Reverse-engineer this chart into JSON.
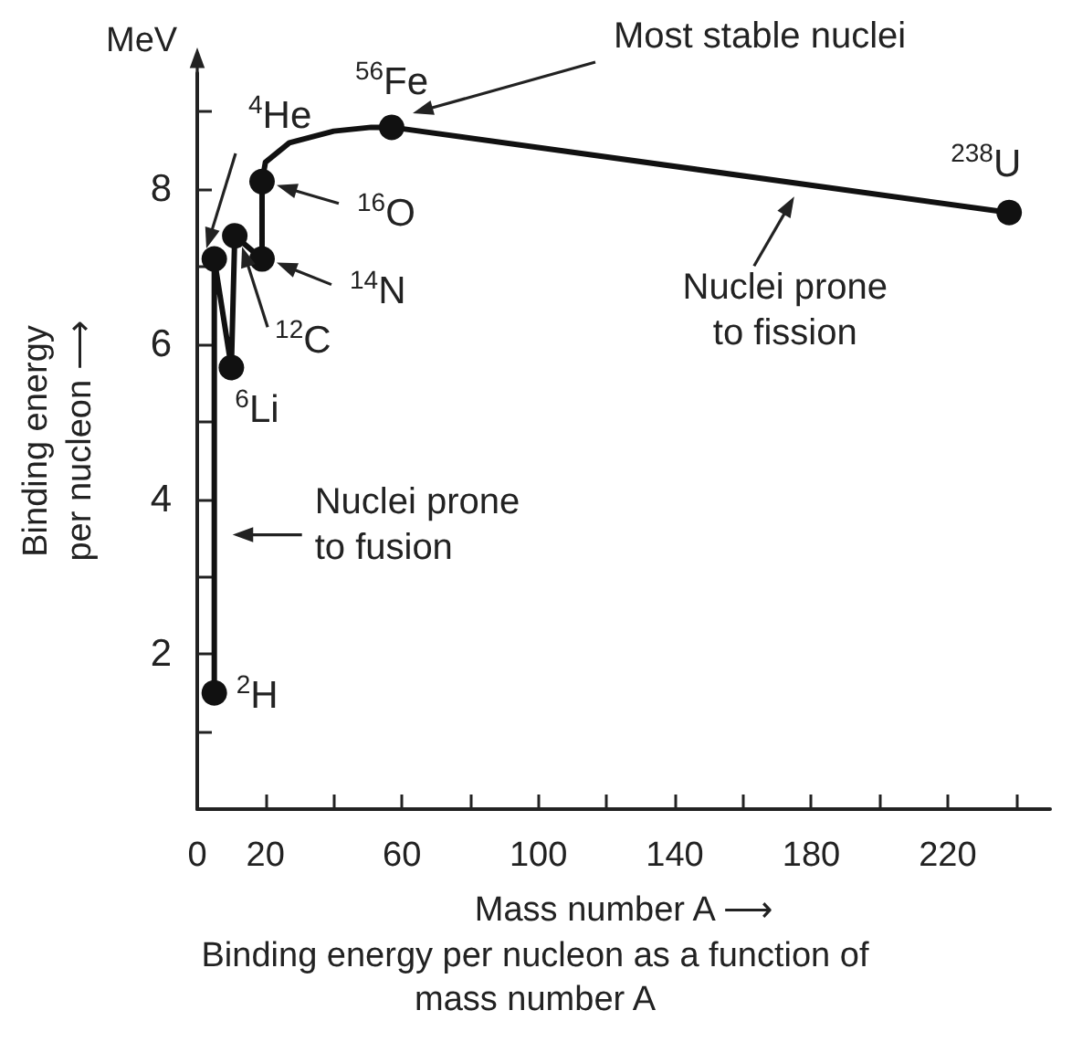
{
  "chart_data": {
    "type": "line",
    "xlabel": "Mass number A ⟶",
    "ylabel": "Binding energy\nper nucleon ⟶",
    "xlim": [
      0,
      250
    ],
    "xticks": [
      {
        "value": 0,
        "label": "0"
      },
      {
        "value": 20,
        "label": "20"
      },
      {
        "value": 40,
        "label": null
      },
      {
        "value": 60,
        "label": "60"
      },
      {
        "value": 80,
        "label": null
      },
      {
        "value": 100,
        "label": "100"
      },
      {
        "value": 120,
        "label": null
      },
      {
        "value": 140,
        "label": "140"
      },
      {
        "value": 160,
        "label": null
      },
      {
        "value": 180,
        "label": "180"
      },
      {
        "value": 200,
        "label": null
      },
      {
        "value": 220,
        "label": "220"
      },
      {
        "value": 240,
        "label": null
      }
    ],
    "ylim": [
      0,
      9.5
    ],
    "yticks": [
      {
        "value": 0,
        "label": null
      },
      {
        "value": 1,
        "label": null
      },
      2,
      {
        "value": 3,
        "label": null
      },
      4,
      {
        "value": 5,
        "label": null
      },
      6,
      {
        "value": 7,
        "label": null
      },
      8,
      {
        "value": 9,
        "label": null
      }
    ],
    "grid": false,
    "series": [
      {
        "color": "#111111",
        "marker": "none",
        "line_style": "solid",
        "x": [
          5,
          5,
          10,
          11,
          19,
          19,
          20,
          27,
          40,
          51,
          57,
          238
        ],
        "values": [
          1.5,
          7.1,
          5.7,
          7.4,
          7.1,
          8.1,
          8.35,
          8.6,
          8.75,
          8.8,
          8.8,
          7.7
        ]
      },
      {
        "type": "scatter",
        "color": "#111111",
        "marker": "circle",
        "x": [
          5,
          5,
          10,
          11,
          19,
          19,
          57,
          238
        ],
        "values": [
          1.5,
          7.1,
          5.7,
          7.4,
          7.1,
          8.1,
          8.8,
          7.7
        ]
      }
    ],
    "annotations": [
      "MeV",
      {
        "text": "$^{2}$H",
        "x": 5,
        "y": 1.5
      },
      "$^{4}$He",
      {
        "text": "$^{6}$Li",
        "x": 10,
        "y": 5.7
      },
      {
        "text": "$^{12}$C",
        "x": 11,
        "y": 7.4
      },
      {
        "text": "$^{14}$N",
        "x": 19,
        "y": 7.1
      },
      {
        "text": "$^{16}$O",
        "x": 19,
        "y": 8.1
      },
      {
        "text": "$^{56}$Fe",
        "x": 57,
        "y": 8.8
      },
      {
        "text": "$^{238}$U",
        "x": 238,
        "y": 7.7
      },
      "Most stable nuclei",
      {
        "text": "Nuclei prone\nto fission",
        "x": 175,
        "y": 8.0
      },
      {
        "text": "Nuclei prone\nto fusion",
        "x": 5,
        "y": 3.4
      },
      "Binding energy per nucleon as a function of\nmass number A"
    ]
  }
}
